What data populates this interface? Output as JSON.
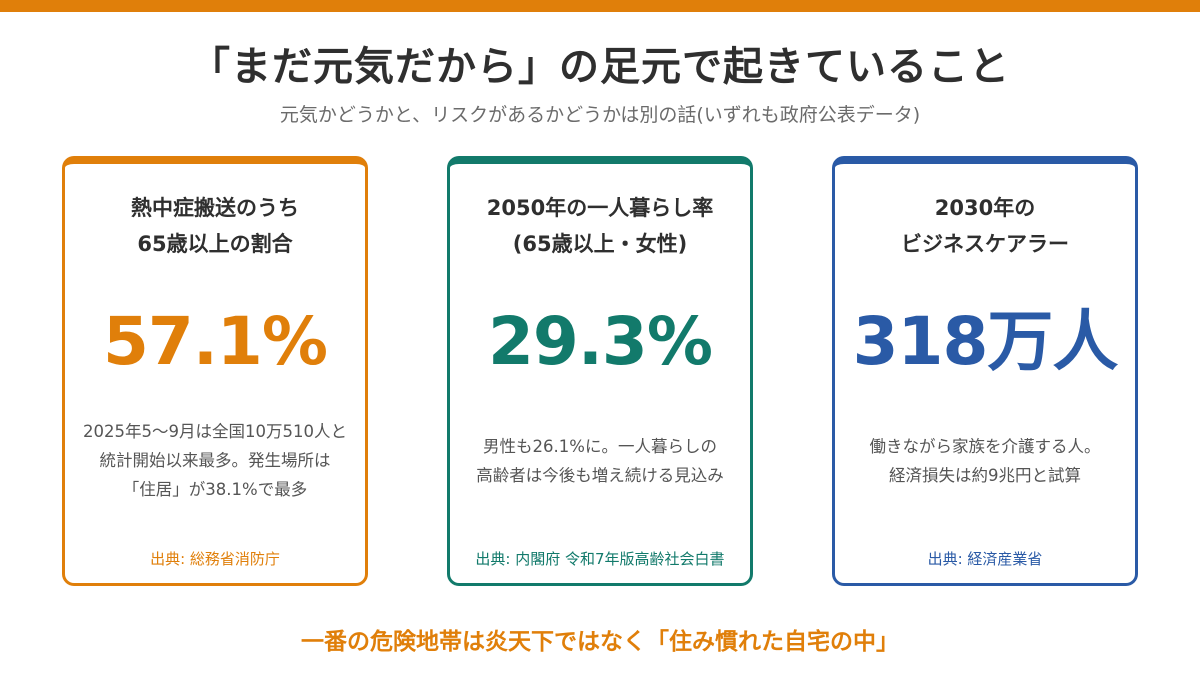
{
  "colors": {
    "orange": "#E07F0A",
    "teal": "#127A6B",
    "blue": "#2A5AA6"
  },
  "title": "「まだ元気だから」の足元で起きていること",
  "subtitle": "元気かどうかと、リスクがあるかどうかは別の話(いずれも政府公表データ)",
  "cards": [
    {
      "label": [
        "熱中症搬送のうち",
        "65歳以上の割合"
      ],
      "value": "57.1%",
      "desc": [
        "2025年5〜9月は全国10万510人と",
        "統計開始以来最多。発生場所は",
        "「住居」が38.1%で最多"
      ],
      "source": "出典: 総務省消防庁"
    },
    {
      "label": [
        "2050年の一人暮らし率",
        "(65歳以上・女性)"
      ],
      "value": "29.3%",
      "desc": [
        "男性も26.1%に。一人暮らしの",
        "高齢者は今後も増え続ける見込み"
      ],
      "source": "出典: 内閣府 令和7年版高齢社会白書"
    },
    {
      "label": [
        "2030年の",
        "ビジネスケアラー"
      ],
      "value": "318万人",
      "desc": [
        "働きながら家族を介護する人。",
        "経済損失は約9兆円と試算"
      ],
      "source": "出典: 経済産業省"
    }
  ],
  "footer": "一番の危険地帯は炎天下ではなく「住み慣れた自宅の中」"
}
